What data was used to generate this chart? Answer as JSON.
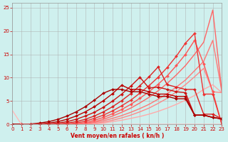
{
  "background_color": "#cff0ee",
  "grid_color": "#aaaaaa",
  "xlabel": "Vent moyen/en rafales ( kn/h )",
  "xlabel_color": "#cc0000",
  "tick_color": "#cc0000",
  "xlim": [
    0,
    23
  ],
  "ylim": [
    0,
    26
  ],
  "yticks": [
    0,
    5,
    10,
    15,
    20,
    25
  ],
  "xticks": [
    0,
    1,
    2,
    3,
    4,
    5,
    6,
    7,
    8,
    9,
    10,
    11,
    12,
    13,
    14,
    15,
    16,
    17,
    18,
    19,
    20,
    21,
    22,
    23
  ],
  "lines": [
    {
      "x": [
        0,
        1,
        2,
        3,
        4,
        5,
        6,
        7,
        8,
        9,
        10,
        11,
        12,
        13,
        14,
        15,
        16,
        17,
        18,
        19,
        20,
        21,
        22,
        23
      ],
      "y": [
        0,
        0,
        0,
        0,
        0,
        0,
        0,
        0,
        0,
        0,
        0,
        0,
        0,
        0,
        0,
        0,
        0,
        0,
        0,
        0,
        0,
        0,
        0,
        0
      ],
      "color": "#ff9999",
      "lw": 1.0,
      "marker": null,
      "ms": 0
    },
    {
      "x": [
        0,
        1,
        2,
        3,
        4,
        5,
        6,
        7,
        8,
        9,
        10,
        11,
        12,
        13,
        14,
        15,
        16,
        17,
        18,
        19,
        20,
        21,
        22,
        23
      ],
      "y": [
        0,
        0,
        0,
        0,
        0,
        0,
        0,
        0,
        0,
        0,
        0.3,
        0.6,
        0.9,
        1.3,
        1.7,
        2.2,
        2.8,
        3.5,
        4.3,
        5.2,
        6.2,
        7.5,
        8.5,
        6.8
      ],
      "color": "#ffaaaa",
      "lw": 1.0,
      "marker": null,
      "ms": 0
    },
    {
      "x": [
        0,
        1,
        2,
        3,
        4,
        5,
        6,
        7,
        8,
        9,
        10,
        11,
        12,
        13,
        14,
        15,
        16,
        17,
        18,
        19,
        20,
        21,
        22,
        23
      ],
      "y": [
        0,
        0,
        0,
        0,
        0,
        0,
        0,
        0,
        0,
        0.2,
        0.5,
        0.9,
        1.4,
        2.0,
        2.7,
        3.5,
        4.5,
        5.6,
        7.0,
        8.5,
        10.2,
        12.0,
        7.0,
        6.8
      ],
      "color": "#ff8888",
      "lw": 1.0,
      "marker": null,
      "ms": 0
    },
    {
      "x": [
        0,
        1,
        2,
        3,
        4,
        5,
        6,
        7,
        8,
        9,
        10,
        11,
        12,
        13,
        14,
        15,
        16,
        17,
        18,
        19,
        20,
        21,
        22,
        23
      ],
      "y": [
        0,
        0,
        0,
        0,
        0,
        0,
        0,
        0,
        0.1,
        0.4,
        0.8,
        1.3,
        1.9,
        2.6,
        3.4,
        4.3,
        5.4,
        6.6,
        8.0,
        9.5,
        11.5,
        13.5,
        18.0,
        7.0
      ],
      "color": "#ff7777",
      "lw": 1.0,
      "marker": null,
      "ms": 0
    },
    {
      "x": [
        0,
        1,
        2,
        3,
        4,
        5,
        6,
        7,
        8,
        9,
        10,
        11,
        12,
        13,
        14,
        15,
        16,
        17,
        18,
        19,
        20,
        21,
        22,
        23
      ],
      "y": [
        0,
        0,
        0,
        0,
        0,
        0,
        0,
        0,
        0.2,
        0.6,
        1.1,
        1.8,
        2.6,
        3.5,
        4.6,
        5.8,
        7.2,
        8.8,
        10.6,
        12.6,
        15.0,
        17.6,
        24.5,
        7.0
      ],
      "color": "#ff6666",
      "lw": 1.0,
      "marker": null,
      "ms": 0
    },
    {
      "x": [
        0,
        1,
        2,
        3,
        4,
        5,
        6,
        7,
        8,
        9,
        10,
        11,
        12,
        13,
        14,
        15,
        16,
        17,
        18,
        19,
        20,
        21,
        22,
        23
      ],
      "y": [
        0,
        0,
        0,
        0,
        0,
        0,
        0,
        0.1,
        0.4,
        0.9,
        1.5,
        2.3,
        3.2,
        4.3,
        5.6,
        7.0,
        8.6,
        10.4,
        12.6,
        15.0,
        18.0,
        13.0,
        7.0,
        0
      ],
      "color": "#ff5555",
      "lw": 1.0,
      "marker": "D",
      "ms": 2
    },
    {
      "x": [
        0,
        1,
        2,
        3,
        4,
        5,
        6,
        7,
        8,
        9,
        10,
        11,
        12,
        13,
        14,
        15,
        16,
        17,
        18,
        19,
        20,
        21,
        22,
        23
      ],
      "y": [
        0,
        0,
        0,
        0,
        0,
        0,
        0.1,
        0.3,
        0.7,
        1.3,
        2.0,
        2.9,
        4.0,
        5.2,
        6.7,
        8.3,
        10.1,
        12.2,
        14.6,
        17.4,
        19.5,
        6.5,
        6.5,
        0
      ],
      "color": "#ee3333",
      "lw": 1.0,
      "marker": "D",
      "ms": 2
    },
    {
      "x": [
        0,
        1,
        2,
        3,
        4,
        5,
        6,
        7,
        8,
        9,
        10,
        11,
        12,
        13,
        14,
        15,
        16,
        17,
        18,
        19,
        20,
        21,
        22,
        23
      ],
      "y": [
        0,
        0,
        0,
        0,
        0,
        0.1,
        0.3,
        0.6,
        1.1,
        1.8,
        2.7,
        3.8,
        5.1,
        6.6,
        8.3,
        10.2,
        12.3,
        8.5,
        8.0,
        7.5,
        7.5,
        2.2,
        2.2,
        1.2
      ],
      "color": "#dd2222",
      "lw": 1.0,
      "marker": "D",
      "ms": 2
    },
    {
      "x": [
        0,
        1,
        2,
        3,
        4,
        5,
        6,
        7,
        8,
        9,
        10,
        11,
        12,
        13,
        14,
        15,
        16,
        17,
        18,
        19,
        20,
        21,
        22,
        23
      ],
      "y": [
        0,
        0,
        0,
        0,
        0.1,
        0.3,
        0.6,
        1.1,
        1.8,
        2.6,
        3.7,
        5.0,
        6.5,
        8.2,
        10.1,
        7.8,
        8.0,
        7.5,
        7.0,
        6.8,
        2.0,
        2.0,
        1.5,
        1.2
      ],
      "color": "#cc1111",
      "lw": 1.0,
      "marker": "D",
      "ms": 2
    },
    {
      "x": [
        0,
        1,
        2,
        3,
        4,
        5,
        6,
        7,
        8,
        9,
        10,
        11,
        12,
        13,
        14,
        15,
        16,
        17,
        18,
        19,
        20,
        21,
        22,
        23
      ],
      "y": [
        0,
        0,
        0,
        0.1,
        0.3,
        0.6,
        1.1,
        1.8,
        2.7,
        3.8,
        5.1,
        6.6,
        8.4,
        7.5,
        7.5,
        7.0,
        6.5,
        6.5,
        6.0,
        6.0,
        2.0,
        2.0,
        1.5,
        1.2
      ],
      "color": "#bb0000",
      "lw": 1.0,
      "marker": "D",
      "ms": 2
    },
    {
      "x": [
        0,
        1,
        2,
        3,
        4,
        5,
        6,
        7,
        8,
        9,
        10,
        11,
        12,
        13,
        14,
        15,
        16,
        17,
        18,
        19,
        20,
        21,
        22,
        23
      ],
      "y": [
        0,
        0,
        0.1,
        0.3,
        0.6,
        1.1,
        1.8,
        2.7,
        3.8,
        5.2,
        6.7,
        7.5,
        7.5,
        7.0,
        7.0,
        6.5,
        6.0,
        6.0,
        5.5,
        5.5,
        2.0,
        2.0,
        1.5,
        1.2
      ],
      "color": "#aa0000",
      "lw": 1.0,
      "marker": "D",
      "ms": 2
    },
    {
      "x": [
        0,
        1,
        2,
        3,
        4,
        5,
        6,
        7,
        8,
        9,
        10,
        11,
        12,
        13,
        14,
        15,
        16,
        17,
        18,
        19,
        20,
        21,
        22,
        23
      ],
      "y": [
        3,
        0,
        0,
        0,
        0,
        0,
        0,
        0,
        0,
        0,
        0,
        0,
        0,
        0,
        0,
        0,
        0,
        0,
        0,
        0,
        0,
        0,
        0,
        0
      ],
      "color": "#ffbbbb",
      "lw": 1.0,
      "marker": null,
      "ms": 0
    }
  ]
}
